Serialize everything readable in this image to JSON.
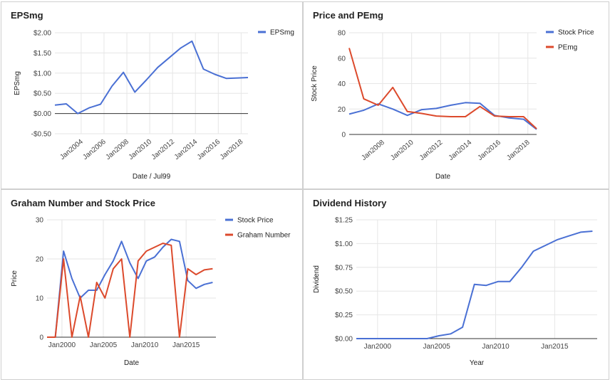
{
  "colors": {
    "blue": "#4a70d4",
    "red": "#dc4a2c"
  },
  "chart_data": [
    {
      "type": "line",
      "title": "EPSmg",
      "xlabel": "Date / Jul99",
      "ylabel": "EPSmg",
      "ylim": [
        -0.5,
        2.0
      ],
      "xlim": [
        2001.7,
        2018.6
      ],
      "y_ticks": [
        -0.5,
        0,
        0.5,
        1.0,
        1.5,
        2.0
      ],
      "y_tick_labels": [
        "-$0.50",
        "$0.00",
        "$0.50",
        "$1.00",
        "$1.50",
        "$2.00"
      ],
      "x_ticks": [
        2004,
        2006,
        2008,
        2010,
        2012,
        2014,
        2016,
        2018
      ],
      "x_tick_labels": [
        "Jan2004",
        "Jan2006",
        "Jan2008",
        "Jan2010",
        "Jan2012",
        "Jan2014",
        "Jan2016",
        "Jan2018"
      ],
      "x_label_style": "rotated",
      "grid": true,
      "legend": "top-right",
      "series": [
        {
          "name": "EPSmg",
          "color": "#4a70d4",
          "x": [
            2001.7,
            2002.7,
            2003.7,
            2004.7,
            2005.7,
            2006.7,
            2007.7,
            2008.7,
            2009.7,
            2010.7,
            2011.7,
            2012.7,
            2013.7,
            2014.7,
            2015.7,
            2016.7,
            2017.7,
            2018.6
          ],
          "y": [
            0.21,
            0.24,
            0.0,
            0.14,
            0.23,
            0.68,
            1.02,
            0.53,
            0.83,
            1.14,
            1.38,
            1.62,
            1.79,
            1.1,
            0.97,
            0.87,
            0.88,
            0.89
          ]
        }
      ]
    },
    {
      "type": "line",
      "title": "Price and PEmg",
      "xlabel": "Date",
      "ylabel": "Stock Price",
      "ylim": [
        0,
        80
      ],
      "xlim": [
        2005.7,
        2018.6
      ],
      "y_ticks": [
        0,
        20,
        40,
        60,
        80
      ],
      "y_tick_labels": [
        "0",
        "20",
        "40",
        "60",
        "80"
      ],
      "x_ticks": [
        2008,
        2010,
        2012,
        2014,
        2016,
        2018
      ],
      "x_tick_labels": [
        "Jan2008",
        "Jan2010",
        "Jan2012",
        "Jan2014",
        "Jan2016",
        "Jan2018"
      ],
      "x_label_style": "rotated",
      "grid": true,
      "legend": "top-right",
      "series": [
        {
          "name": "Stock Price",
          "color": "#4a70d4",
          "x": [
            2005.7,
            2006.7,
            2007.7,
            2008.7,
            2009.7,
            2010.7,
            2011.7,
            2012.7,
            2013.7,
            2014.7,
            2015.7,
            2016.7,
            2017.7,
            2018.6
          ],
          "y": [
            16,
            19,
            24,
            20,
            15,
            19.5,
            20.5,
            23,
            25,
            24.5,
            15,
            13,
            12,
            4
          ]
        },
        {
          "name": "PEmg",
          "color": "#dc4a2c",
          "x": [
            2005.7,
            2006.7,
            2007.7,
            2008.7,
            2009.7,
            2010.7,
            2011.7,
            2012.7,
            2013.7,
            2014.7,
            2015.7,
            2016.7,
            2017.7,
            2018.6
          ],
          "y": [
            68,
            28,
            23,
            37,
            18,
            16.5,
            14.5,
            14,
            14,
            22,
            14.5,
            14,
            14,
            4.5
          ]
        }
      ]
    },
    {
      "type": "line",
      "title": "Graham Number and Stock Price",
      "xlabel": "Date",
      "ylabel": "Price",
      "ylim": [
        0,
        30
      ],
      "xlim": [
        1998.2,
        2018.6
      ],
      "y_ticks": [
        0,
        10,
        20,
        30
      ],
      "y_tick_labels": [
        "0",
        "10",
        "20",
        "30"
      ],
      "x_ticks": [
        2000,
        2005,
        2010,
        2015
      ],
      "x_tick_labels": [
        "Jan2000",
        "Jan2005",
        "Jan2010",
        "Jan2015"
      ],
      "x_label_style": "horizontal",
      "grid": true,
      "legend": "top-right",
      "series": [
        {
          "name": "Stock Price",
          "color": "#4a70d4",
          "x": [
            1998.2,
            1999.2,
            2000.2,
            2001.2,
            2002.2,
            2003.2,
            2004.2,
            2005.2,
            2006.2,
            2007.2,
            2008.2,
            2009.2,
            2010.2,
            2011.2,
            2012.2,
            2013.2,
            2014.2,
            2015.2,
            2016.2,
            2017.2,
            2018.2
          ],
          "y": [
            0,
            0,
            22,
            15,
            10,
            12,
            12,
            16,
            19.5,
            24.5,
            19,
            15,
            19.5,
            20.5,
            23,
            25,
            24.5,
            14.5,
            12.5,
            13.5,
            14
          ]
        },
        {
          "name": "Graham Number",
          "color": "#dc4a2c",
          "x": [
            1998.2,
            1999.2,
            2000.2,
            2001.2,
            2002.2,
            2003.2,
            2004.2,
            2005.2,
            2006.2,
            2007.2,
            2008.2,
            2009.2,
            2010.2,
            2011.2,
            2012.2,
            2013.2,
            2014.2,
            2015.2,
            2016.2,
            2017.2,
            2018.2
          ],
          "y": [
            0,
            0,
            20,
            0,
            10.5,
            0,
            14,
            10,
            17.5,
            20,
            0,
            19.5,
            22,
            23,
            24,
            23.5,
            0,
            17.5,
            16,
            17.2,
            17.5
          ]
        }
      ]
    },
    {
      "type": "line",
      "title": "Dividend History",
      "xlabel": "Year",
      "ylabel": "Dividend",
      "ylim": [
        0,
        1.25
      ],
      "xlim": [
        1998.2,
        2018.6
      ],
      "y_ticks": [
        0,
        0.25,
        0.5,
        0.75,
        1.0,
        1.25
      ],
      "y_tick_labels": [
        "$0.00",
        "$0.25",
        "$0.50",
        "$0.75",
        "$1.00",
        "$1.25"
      ],
      "x_ticks": [
        2000,
        2005,
        2010,
        2015
      ],
      "x_tick_labels": [
        "Jan2000",
        "Jan2005",
        "Jan2010",
        "Jan2015"
      ],
      "x_label_style": "horizontal",
      "grid": true,
      "legend": "none",
      "series": [
        {
          "name": "",
          "color": "#4a70d4",
          "x": [
            1998.2,
            2004.2,
            2005.2,
            2006.2,
            2007.2,
            2008.2,
            2009.2,
            2010.2,
            2011.2,
            2012.2,
            2013.2,
            2014.2,
            2015.2,
            2016.2,
            2017.2,
            2018.2
          ],
          "y": [
            0,
            0,
            0.03,
            0.05,
            0.12,
            0.57,
            0.56,
            0.6,
            0.6,
            0.75,
            0.92,
            0.98,
            1.04,
            1.08,
            1.12,
            1.13
          ]
        }
      ]
    }
  ]
}
